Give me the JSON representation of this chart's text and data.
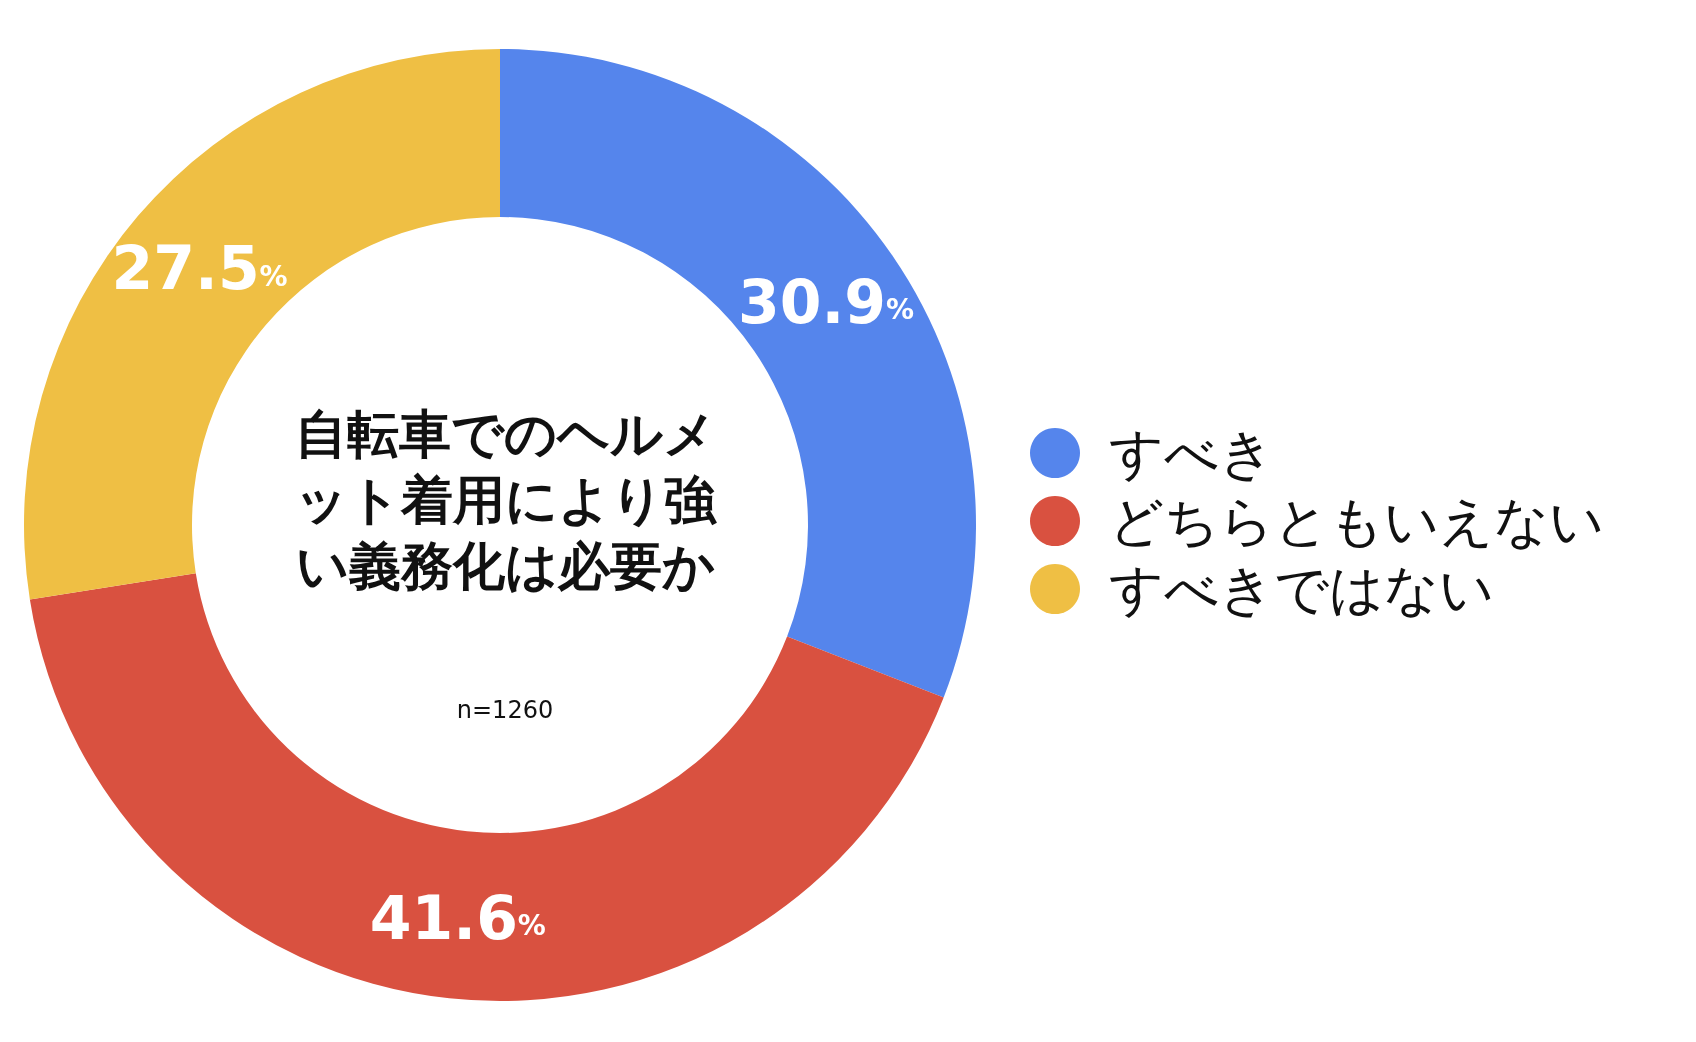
{
  "chart_data": {
    "type": "donut",
    "title": "自転車でのヘルメット着用により強い義務化は必要か",
    "subtitle": "n=1260",
    "categories": [
      "すべき",
      "どちらともいえない",
      "すべきではない"
    ],
    "values": [
      30.9,
      41.6,
      27.5
    ],
    "colors": [
      "#5585ec",
      "#d95140",
      "#efbf44"
    ],
    "value_labels": [
      "30.9%",
      "41.6%",
      "27.5%"
    ],
    "legend": "right"
  }
}
